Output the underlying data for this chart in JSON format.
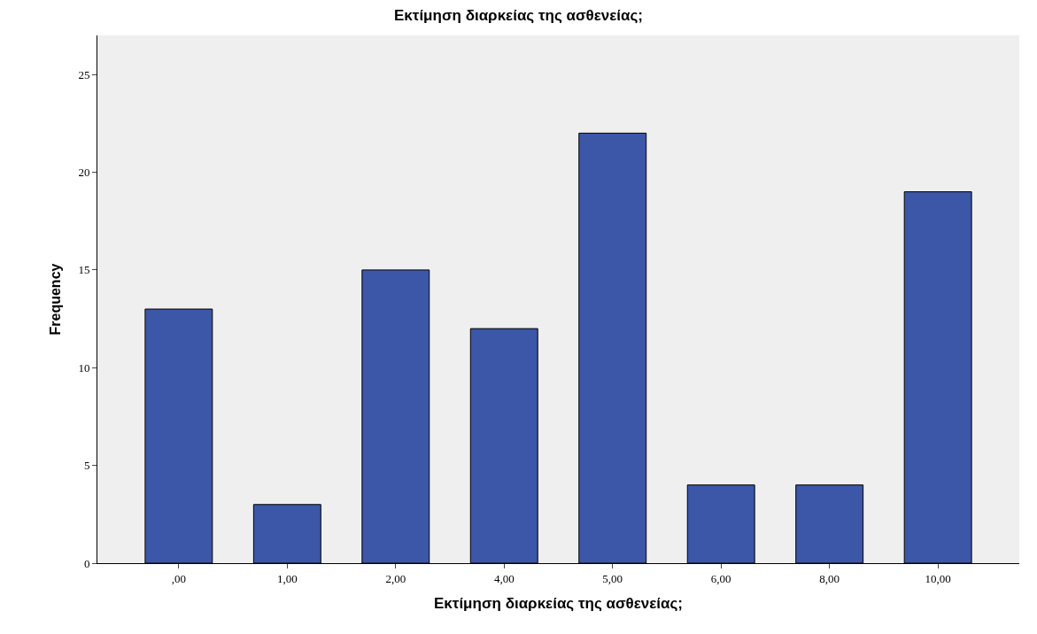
{
  "chart_data": {
    "type": "bar",
    "title": "Εκτίμηση διαρκείας της ασθενείας;",
    "xlabel": "Εκτίμηση διαρκείας της ασθενείας;",
    "ylabel": "Frequency",
    "categories": [
      ",00",
      "1,00",
      "2,00",
      "4,00",
      "5,00",
      "6,00",
      "8,00",
      "10,00"
    ],
    "values": [
      13,
      3,
      15,
      12,
      22,
      4,
      4,
      19
    ],
    "color": "#3c56a8",
    "ylim": [
      0,
      27
    ],
    "yticks": [
      0,
      5,
      10,
      15,
      20,
      25
    ],
    "grid": false
  }
}
